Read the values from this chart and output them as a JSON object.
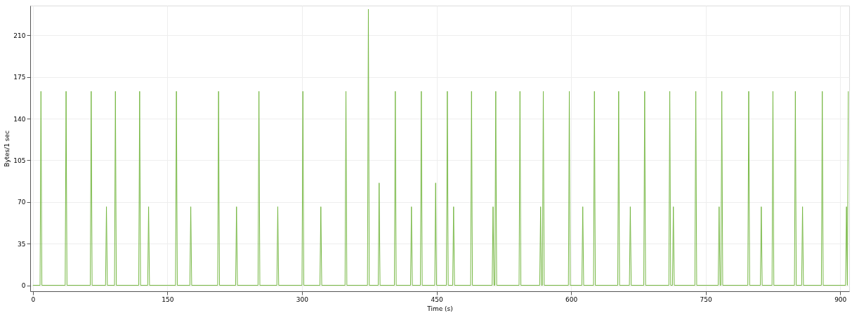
{
  "chart_data": {
    "type": "line",
    "xlabel": "Time (s)",
    "ylabel": "Bytes/1 sec",
    "xlim": [
      -3,
      910
    ],
    "xticks": [
      0,
      150,
      300,
      450,
      600,
      750,
      900
    ],
    "ylim": [
      -5,
      235
    ],
    "yticks": [
      0,
      35,
      70,
      105,
      140,
      175,
      210
    ],
    "grid": true,
    "marker": "none",
    "line_style": "solid",
    "series": [
      {
        "color": "#77b844",
        "x": [
          0,
          8,
          9,
          10,
          36,
          37,
          38,
          64,
          65,
          66,
          81,
          82,
          83,
          91,
          92,
          93,
          118,
          119,
          120,
          128,
          129,
          130,
          159,
          160,
          161,
          175,
          176,
          177,
          206,
          207,
          208,
          226,
          227,
          228,
          251,
          252,
          253,
          272,
          273,
          274,
          300,
          301,
          302,
          320,
          321,
          322,
          348,
          349,
          350,
          373,
          374,
          375,
          385,
          386,
          387,
          403,
          404,
          405,
          421,
          422,
          423,
          432,
          433,
          434,
          448,
          449,
          450,
          461,
          462,
          463,
          468,
          469,
          470,
          488,
          489,
          490,
          512,
          513,
          514,
          515,
          516,
          517,
          542,
          543,
          544,
          565,
          566,
          567,
          568,
          569,
          570,
          597,
          598,
          599,
          612,
          613,
          614,
          625,
          626,
          627,
          652,
          653,
          654,
          665,
          666,
          667,
          681,
          682,
          683,
          709,
          710,
          711,
          713,
          714,
          715,
          738,
          739,
          740,
          764,
          765,
          766,
          767,
          768,
          769,
          797,
          798,
          799,
          811,
          812,
          813,
          824,
          825,
          826,
          849,
          850,
          851,
          857,
          858,
          859,
          879,
          880,
          881,
          906,
          907,
          908,
          909
        ],
        "values": [
          0,
          0,
          163,
          0,
          0,
          163,
          0,
          0,
          163,
          0,
          0,
          66,
          0,
          0,
          163,
          0,
          0,
          163,
          0,
          0,
          66,
          0,
          0,
          163,
          0,
          0,
          66,
          0,
          0,
          163,
          0,
          0,
          66,
          0,
          0,
          163,
          0,
          0,
          66,
          0,
          0,
          163,
          0,
          0,
          66,
          0,
          0,
          163,
          0,
          0,
          232,
          0,
          0,
          86,
          0,
          0,
          163,
          0,
          0,
          66,
          0,
          0,
          163,
          0,
          0,
          86,
          0,
          0,
          163,
          0,
          0,
          66,
          0,
          0,
          163,
          0,
          0,
          66,
          0,
          0,
          163,
          0,
          0,
          163,
          0,
          0,
          66,
          0,
          0,
          163,
          0,
          0,
          163,
          0,
          0,
          66,
          0,
          0,
          163,
          0,
          0,
          163,
          0,
          0,
          66,
          0,
          0,
          163,
          0,
          0,
          163,
          0,
          0,
          66,
          0,
          0,
          163,
          0,
          0,
          66,
          0,
          0,
          163,
          0,
          0,
          163,
          0,
          0,
          66,
          0,
          0,
          163,
          0,
          0,
          163,
          0,
          0,
          66,
          0,
          0,
          163,
          0,
          0,
          66,
          0,
          163
        ]
      }
    ]
  }
}
